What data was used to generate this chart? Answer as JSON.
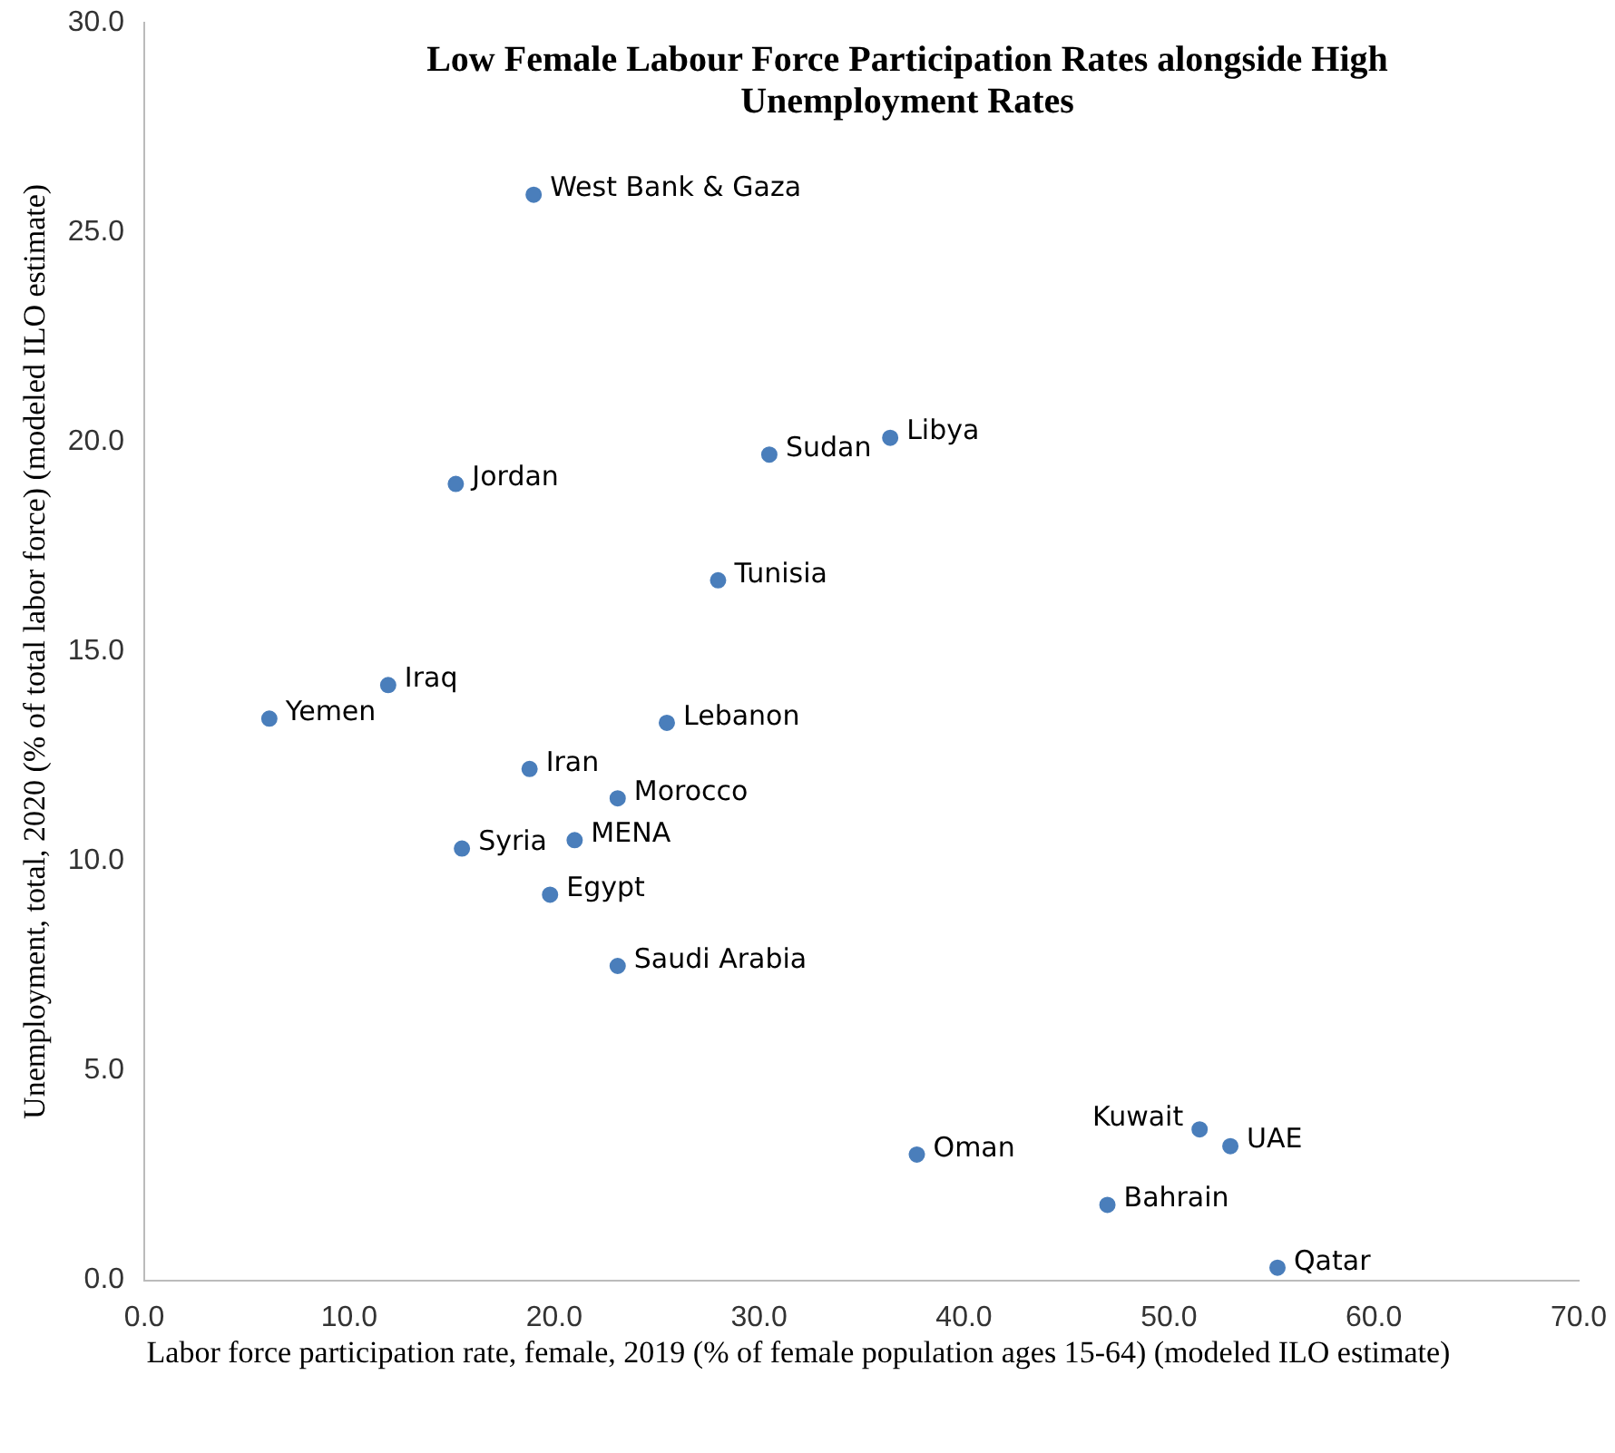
{
  "chart_data": {
    "type": "scatter",
    "title": "Low Female Labour Force Participation Rates alongside High Unemployment Rates",
    "xlabel": "Labor force participation rate, female, 2019 (% of female population ages 15-64) (modeled ILO estimate)",
    "ylabel": "Unemployment, total, 2020 (% of total labor force) (modeled ILO estimate)",
    "xlim": [
      0,
      70
    ],
    "xticks": [
      {
        "value": 0,
        "label": "0.0"
      },
      {
        "value": 10,
        "label": "10.0"
      },
      {
        "value": 20,
        "label": "20.0"
      },
      {
        "value": 30,
        "label": "30.0"
      },
      {
        "value": 40,
        "label": "40.0"
      },
      {
        "value": 50,
        "label": "50.0"
      },
      {
        "value": 60,
        "label": "60.0"
      },
      {
        "value": 70,
        "label": "70.0"
      }
    ],
    "ylim": [
      0,
      30
    ],
    "yticks": [
      {
        "value": 0,
        "label": "0.0"
      },
      {
        "value": 5,
        "label": "5.0"
      },
      {
        "value": 10,
        "label": "10.0"
      },
      {
        "value": 15,
        "label": "15.0"
      },
      {
        "value": 20,
        "label": "20.0"
      },
      {
        "value": 25,
        "label": "25.0"
      },
      {
        "value": 30,
        "label": "30.0"
      }
    ],
    "grid": false,
    "legend": false,
    "marker": "circle",
    "series": [
      {
        "name": "West Bank & Gaza",
        "color": "#4a7ebb",
        "x": [
          19.0
        ],
        "values": [
          25.9
        ]
      },
      {
        "name": "Libya",
        "color": "#4a7ebb",
        "x": [
          36.4
        ],
        "values": [
          20.1
        ]
      },
      {
        "name": "Sudan",
        "color": "#4a7ebb",
        "x": [
          30.5
        ],
        "values": [
          19.7
        ]
      },
      {
        "name": "Jordan",
        "color": "#4a7ebb",
        "x": [
          15.2
        ],
        "values": [
          19.0
        ]
      },
      {
        "name": "Tunisia",
        "color": "#4a7ebb",
        "x": [
          28.0
        ],
        "values": [
          16.7
        ]
      },
      {
        "name": "Iraq",
        "color": "#4a7ebb",
        "x": [
          11.9
        ],
        "values": [
          14.2
        ]
      },
      {
        "name": "Yemen",
        "color": "#4a7ebb",
        "x": [
          6.1
        ],
        "values": [
          13.4
        ]
      },
      {
        "name": "Lebanon",
        "color": "#4a7ebb",
        "x": [
          25.5
        ],
        "values": [
          13.3
        ]
      },
      {
        "name": "Iran",
        "color": "#4a7ebb",
        "x": [
          18.8
        ],
        "values": [
          12.2
        ]
      },
      {
        "name": "Morocco",
        "color": "#4a7ebb",
        "x": [
          23.1
        ],
        "values": [
          11.5
        ]
      },
      {
        "name": "MENA",
        "color": "#4a7ebb",
        "x": [
          21.0
        ],
        "values": [
          10.5
        ]
      },
      {
        "name": "Syria",
        "color": "#4a7ebb",
        "x": [
          15.5
        ],
        "values": [
          10.3
        ]
      },
      {
        "name": "Egypt",
        "color": "#4a7ebb",
        "x": [
          19.8
        ],
        "values": [
          9.2
        ]
      },
      {
        "name": "Saudi Arabia",
        "color": "#4a7ebb",
        "x": [
          23.1
        ],
        "values": [
          7.5
        ]
      },
      {
        "name": "Oman",
        "color": "#4a7ebb",
        "x": [
          37.7
        ],
        "values": [
          3.0
        ]
      },
      {
        "name": "Kuwait",
        "color": "#4a7ebb",
        "x": [
          51.5
        ],
        "values": [
          3.6
        ]
      },
      {
        "name": "UAE",
        "color": "#4a7ebb",
        "x": [
          53.0
        ],
        "values": [
          3.2
        ]
      },
      {
        "name": "Bahrain",
        "color": "#4a7ebb",
        "x": [
          47.0
        ],
        "values": [
          1.8
        ]
      },
      {
        "name": "Qatar",
        "color": "#4a7ebb",
        "x": [
          55.3
        ],
        "values": [
          0.3
        ]
      }
    ]
  }
}
